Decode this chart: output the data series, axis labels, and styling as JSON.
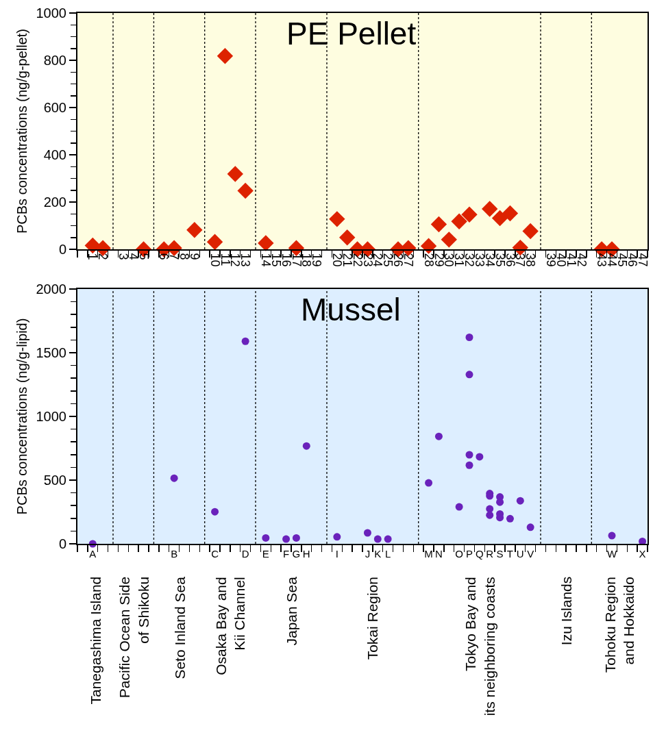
{
  "chart_data": [
    {
      "type": "scatter",
      "title": "PE Pellet",
      "ylabel": "PCBs concentrations (ng/g-pellet)",
      "color": "#dd2200",
      "marker": "diamond",
      "categories": [
        null,
        "1",
        "2",
        null,
        "3",
        "4",
        "5",
        null,
        "6",
        "7",
        "8",
        "9",
        null,
        "10",
        "11",
        "12",
        "13",
        null,
        "14",
        "15",
        "16",
        "17",
        "18",
        "19",
        null,
        "20",
        "21",
        "22",
        "23",
        "24",
        "25",
        "26",
        "27",
        null,
        "28",
        "29",
        "30",
        "31",
        "32",
        "33",
        "34",
        "35",
        "36",
        "37",
        "38",
        null,
        "39",
        "40",
        "41",
        "42",
        null,
        "43",
        "44",
        "45",
        "46",
        "47"
      ],
      "values": [
        null,
        16,
        5,
        null,
        null,
        null,
        0,
        null,
        0,
        5,
        null,
        82,
        null,
        31,
        818,
        319,
        248,
        null,
        26,
        null,
        null,
        5,
        null,
        null,
        null,
        128,
        50,
        0,
        0,
        null,
        null,
        0,
        5,
        null,
        14,
        106,
        41,
        118,
        147,
        null,
        171,
        132,
        152,
        7,
        77,
        null,
        null,
        null,
        null,
        null,
        null,
        0,
        0,
        null,
        null,
        null
      ],
      "ylim": [
        0,
        1000
      ],
      "yticks": [
        0,
        200,
        400,
        600,
        800,
        1000,
        {
          "value": 50,
          "label": null
        },
        {
          "value": 100,
          "label": null
        },
        {
          "value": 150,
          "label": null
        },
        {
          "value": 250,
          "label": null
        },
        {
          "value": 300,
          "label": null
        },
        {
          "value": 350,
          "label": null
        },
        {
          "value": 450,
          "label": null
        },
        {
          "value": 500,
          "label": null
        },
        {
          "value": 550,
          "label": null
        },
        {
          "value": 650,
          "label": null
        },
        {
          "value": 700,
          "label": null
        },
        {
          "value": 750,
          "label": null
        },
        {
          "value": 850,
          "label": null
        },
        {
          "value": 900,
          "label": null
        },
        {
          "value": 950,
          "label": null
        }
      ],
      "grid": "x",
      "bands": [
        {
          "axis": "y",
          "from": 0,
          "to": 1000,
          "color": "#fefde0"
        }
      ]
    },
    {
      "type": "scatter",
      "title": "Mussel",
      "ylabel": "PCBs concentrations (ng/g-lipid)",
      "marker": "circle",
      "categories": [
        null,
        "A",
        null,
        null,
        null,
        null,
        null,
        null,
        null,
        "B",
        null,
        null,
        null,
        "C",
        null,
        null,
        "D",
        null,
        "E",
        null,
        "F",
        "G",
        "H",
        null,
        null,
        "I",
        null,
        null,
        "J",
        "K",
        "L",
        null,
        null,
        null,
        "M",
        "N",
        null,
        "O",
        "P",
        "Q",
        "R",
        "S",
        "T",
        "U",
        "V",
        null,
        null,
        null,
        null,
        null,
        null,
        null,
        "W",
        null,
        null,
        "X"
      ],
      "series": [
        {
          "color": "#6a22bb",
          "x": [
            "A",
            "B",
            "C",
            "D",
            "E",
            "F",
            "G",
            "H",
            "I",
            "J",
            "K",
            "L",
            "M",
            "N",
            "O",
            "P",
            "P",
            "P",
            "P",
            "Q",
            "R",
            "R",
            "R",
            "R",
            "S",
            "S",
            "S",
            "S",
            "T",
            "U",
            "V",
            "W",
            "X"
          ],
          "values": [
            0,
            515,
            252,
            1590,
            46,
            37,
            46,
            768,
            55,
            86,
            37,
            37,
            478,
            843,
            290,
            1621,
            1329,
            699,
            617,
            683,
            395,
            376,
            274,
            225,
            368,
            327,
            234,
            206,
            197,
            338,
            130,
            64,
            19
          ]
        }
      ],
      "ylim": [
        0,
        2000
      ],
      "yticks": [
        0,
        500,
        1000,
        1500,
        2000,
        {
          "value": 100,
          "label": null
        },
        {
          "value": 200,
          "label": null
        },
        {
          "value": 300,
          "label": null
        },
        {
          "value": 400,
          "label": null
        },
        {
          "value": 600,
          "label": null
        },
        {
          "value": 700,
          "label": null
        },
        {
          "value": 800,
          "label": null
        },
        {
          "value": 900,
          "label": null
        },
        {
          "value": 1100,
          "label": null
        },
        {
          "value": 1200,
          "label": null
        },
        {
          "value": 1300,
          "label": null
        },
        {
          "value": 1400,
          "label": null
        },
        {
          "value": 1600,
          "label": null
        },
        {
          "value": 1700,
          "label": null
        },
        {
          "value": 1800,
          "label": null
        },
        {
          "value": 1900,
          "label": null
        }
      ],
      "grid": "x",
      "bands": [
        {
          "axis": "y",
          "from": 0,
          "to": 2000,
          "color": "#ddeeff"
        }
      ],
      "annotations": [
        "Tanegashima Island",
        "Pacific Ocean Side\nof Shikoku",
        "Seto Inland Sea",
        "Osaka Bay and\nKii Channel",
        "Japan Sea",
        "Tokai Region",
        "Tokyo Bay and\nits neighboring coasts",
        "Izu Islands",
        "Tohoku Region\nand Hokkaido"
      ]
    }
  ]
}
